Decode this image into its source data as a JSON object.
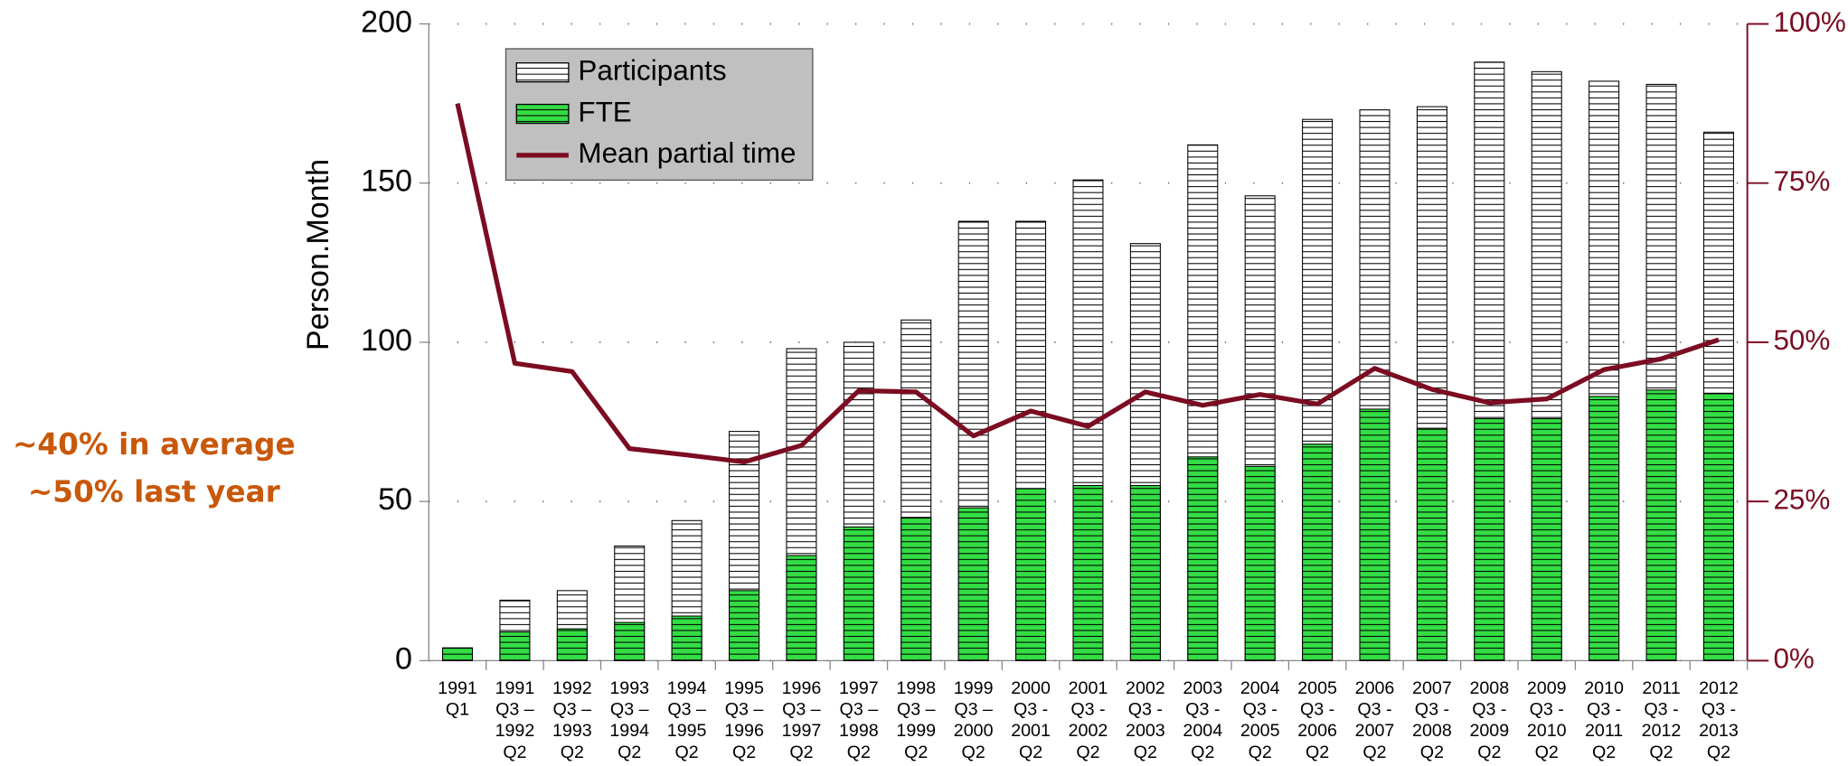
{
  "chart_data": {
    "type": "bar",
    "y_label": "Person.Month",
    "annotations": [
      "~40% in average",
      "~50% last year"
    ],
    "categories": [
      [
        "1991",
        "Q1"
      ],
      [
        "1991",
        "Q3 –",
        "1992",
        "Q2"
      ],
      [
        "1992",
        "Q3 –",
        "1993",
        "Q2"
      ],
      [
        "1993",
        "Q3 –",
        "1994",
        "Q2"
      ],
      [
        "1994",
        "Q3 –",
        "1995",
        "Q2"
      ],
      [
        "1995",
        "Q3 –",
        "1996",
        "Q2"
      ],
      [
        "1996",
        "Q3 –",
        "1997",
        "Q2"
      ],
      [
        "1997",
        "Q3 –",
        "1998",
        "Q2"
      ],
      [
        "1998",
        "Q3 –",
        "1999",
        "Q2"
      ],
      [
        "1999",
        "Q3 –",
        "2000",
        "Q2"
      ],
      [
        "2000",
        "Q3 -",
        "2001",
        "Q2"
      ],
      [
        "2001",
        "Q3 -",
        "2002",
        "Q2"
      ],
      [
        "2002",
        "Q3 -",
        "2003",
        "Q2"
      ],
      [
        "2003",
        "Q3 -",
        "2004",
        "Q2"
      ],
      [
        "2004",
        "Q3 -",
        "2005",
        "Q2"
      ],
      [
        "2005",
        "Q3 -",
        "2006",
        "Q2"
      ],
      [
        "2006",
        "Q3 -",
        "2007",
        "Q2"
      ],
      [
        "2007",
        "Q3 -",
        "2008",
        "Q2"
      ],
      [
        "2008",
        "Q3 -",
        "2009",
        "Q2"
      ],
      [
        "2009",
        "Q3 -",
        "2010",
        "Q2"
      ],
      [
        "2010",
        "Q3 -",
        "2011",
        "Q2"
      ],
      [
        "2011",
        "Q3 -",
        "2012",
        "Q2"
      ],
      [
        "2012",
        "Q3 -",
        "2013",
        "Q2"
      ]
    ],
    "series": [
      {
        "name": "Participants",
        "type": "bar",
        "color": "#ffffff",
        "values": [
          4,
          19,
          22,
          36,
          44,
          72,
          98,
          100,
          107,
          138,
          138,
          151,
          131,
          162,
          146,
          170,
          173,
          174,
          188,
          185,
          182,
          181,
          166
        ]
      },
      {
        "name": "FTE",
        "type": "bar",
        "color": "#33dd44",
        "values": [
          4,
          9,
          10,
          12,
          14,
          22,
          33,
          42,
          45,
          48,
          54,
          55,
          55,
          64,
          61,
          68,
          79,
          73,
          76,
          76,
          83,
          85,
          84
        ]
      },
      {
        "name": "Mean partial time",
        "type": "line",
        "axis": "y2",
        "color": "#7b0c22",
        "values": [
          87.5,
          46.7,
          45.4,
          33.3,
          32.3,
          31.2,
          33.8,
          42.4,
          42.2,
          35.3,
          39.2,
          36.8,
          42.2,
          40.1,
          41.8,
          40.3,
          45.9,
          42.6,
          40.5,
          41.1,
          45.7,
          47.4,
          50.4
        ]
      }
    ],
    "ylim": [
      0,
      200
    ],
    "yticks": [
      0,
      50,
      100,
      150,
      200
    ],
    "y2lim": [
      0,
      100
    ],
    "y2ticks": [
      {
        "value": 0,
        "label": "0%"
      },
      {
        "value": 25,
        "label": "25%"
      },
      {
        "value": 50,
        "label": "50%"
      },
      {
        "value": 75,
        "label": "75%"
      },
      {
        "value": 100,
        "label": "100%"
      }
    ],
    "y2_color": "#7b0c22",
    "annotation_color": "#c8580a",
    "grid": true,
    "legend": "top-left"
  }
}
